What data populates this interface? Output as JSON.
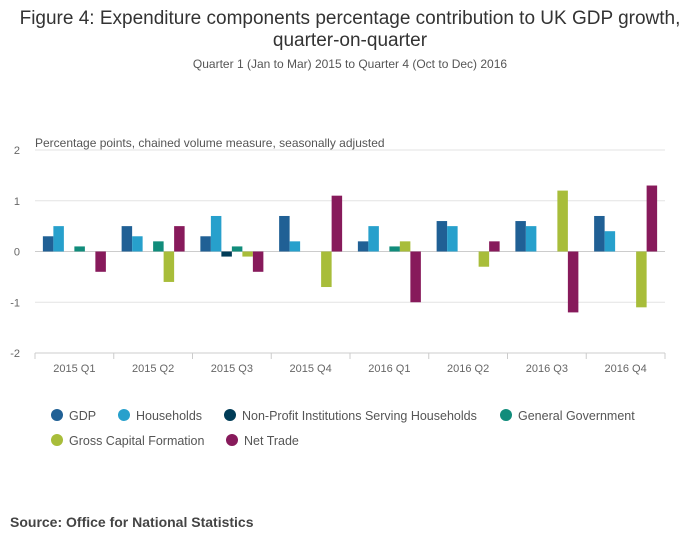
{
  "chart_data": {
    "type": "bar",
    "title": "Figure 4: Expenditure components percentage contribution to UK GDP growth, quarter-on-quarter",
    "subtitle": "Quarter 1 (Jan to Mar) 2015 to Quarter 4 (Oct to Dec) 2016",
    "ylabel": "Percentage points, chained volume measure, seasonally adjusted",
    "ylim": [
      -2,
      2
    ],
    "yticks": [
      2,
      1,
      0,
      -1,
      -2
    ],
    "ytick_labels": [
      "2",
      "1",
      "0",
      "-1",
      "-2"
    ],
    "grid": true,
    "legend_position": "bottom",
    "categories": [
      "2015 Q1",
      "2015 Q2",
      "2015 Q3",
      "2015 Q4",
      "2016 Q1",
      "2016 Q2",
      "2016 Q3",
      "2016 Q4"
    ],
    "series": [
      {
        "name": "GDP",
        "color": "#206095",
        "values": [
          0.3,
          0.5,
          0.3,
          0.7,
          0.2,
          0.6,
          0.6,
          0.7
        ]
      },
      {
        "name": "Households",
        "color": "#27a0cc",
        "values": [
          0.5,
          0.3,
          0.7,
          0.2,
          0.5,
          0.5,
          0.5,
          0.4
        ]
      },
      {
        "name": "Non-Profit Institutions Serving Households",
        "color": "#003c57",
        "values": [
          0,
          0,
          -0.1,
          0,
          0,
          0,
          0,
          0
        ]
      },
      {
        "name": "General Government",
        "color": "#118c7b",
        "values": [
          0.1,
          0.2,
          0.1,
          0,
          0.1,
          0,
          0,
          0
        ]
      },
      {
        "name": "Gross Capital Formation",
        "color": "#a8bd3a",
        "values": [
          0,
          -0.6,
          -0.1,
          -0.7,
          0.2,
          -0.3,
          1.2,
          -1.1
        ]
      },
      {
        "name": "Net Trade",
        "color": "#871a5b",
        "values": [
          -0.4,
          0.5,
          -0.4,
          1.1,
          -1.0,
          0.2,
          -1.2,
          1.3
        ]
      }
    ]
  },
  "source": "Source: Office for National Statistics"
}
